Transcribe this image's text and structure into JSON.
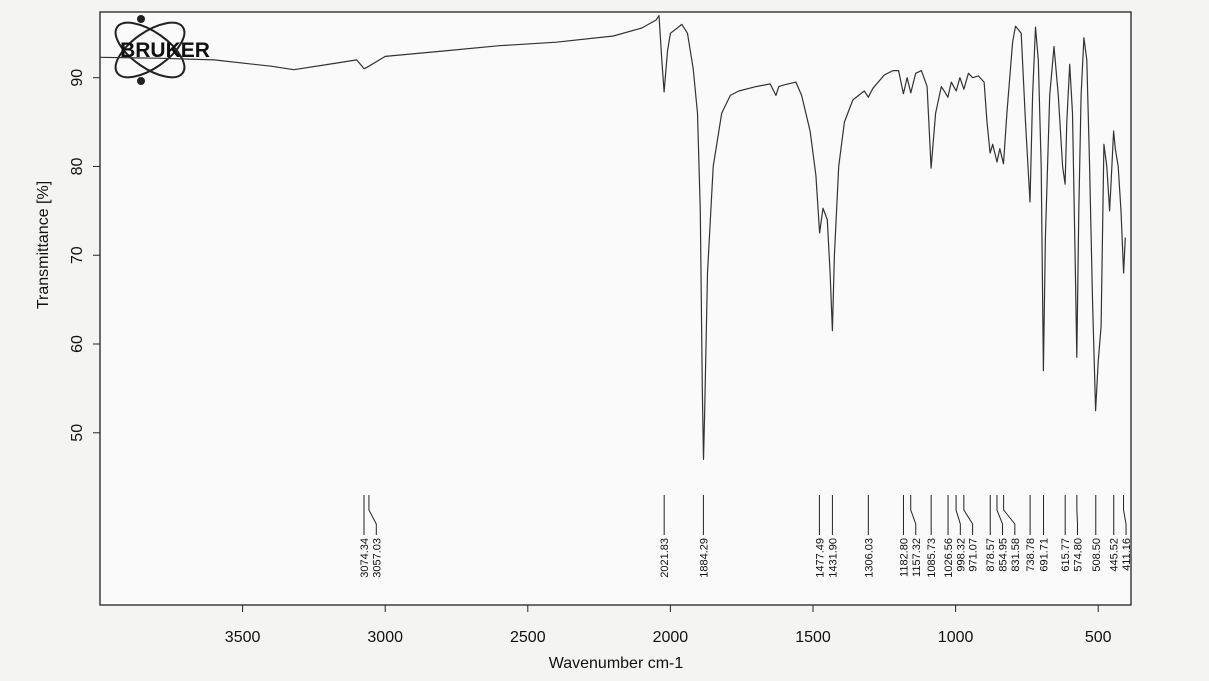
{
  "chart_data": {
    "type": "line",
    "logo_text": "BRUKER",
    "x_label": "Wavenumber cm-1",
    "y_label": "Transmittance [%]",
    "xlim": [
      4000,
      385
    ],
    "ylim": [
      30.6,
      97.4
    ],
    "xticks": [
      3500,
      3000,
      2500,
      2000,
      1500,
      1000,
      500
    ],
    "yticks": [
      50,
      60,
      70,
      80,
      90
    ],
    "series": [
      {
        "color": "#333333",
        "x": [
          4000,
          3800,
          3600,
          3400,
          3320,
          3200,
          3100,
          3074,
          3057,
          3000,
          2800,
          2600,
          2400,
          2200,
          2100,
          2050,
          2040,
          2030,
          2022,
          2010,
          2000,
          1980,
          1960,
          1940,
          1920,
          1905,
          1895,
          1888,
          1884,
          1880,
          1870,
          1850,
          1820,
          1790,
          1760,
          1700,
          1650,
          1630,
          1620,
          1600,
          1560,
          1540,
          1510,
          1490,
          1477,
          1465,
          1450,
          1440,
          1432,
          1425,
          1410,
          1390,
          1360,
          1340,
          1320,
          1306,
          1290,
          1250,
          1220,
          1200,
          1183,
          1170,
          1157,
          1140,
          1120,
          1100,
          1086,
          1070,
          1050,
          1040,
          1027,
          1015,
          998,
          985,
          971,
          955,
          940,
          920,
          900,
          890,
          879,
          870,
          855,
          845,
          832,
          820,
          800,
          790,
          770,
          755,
          739,
          730,
          720,
          710,
          700,
          692,
          685,
          670,
          655,
          640,
          625,
          616,
          610,
          600,
          590,
          580,
          575,
          568,
          560,
          550,
          540,
          530,
          520,
          509,
          500,
          490,
          480,
          470,
          460,
          455,
          446,
          440,
          430,
          420,
          411,
          405
        ],
        "values": [
          92.3,
          92.2,
          92,
          91.3,
          90.9,
          91.5,
          92,
          91,
          91.3,
          92.4,
          93,
          93.6,
          94,
          94.7,
          95.6,
          96.5,
          97,
          92,
          88.4,
          93,
          95,
          95.5,
          96,
          95,
          91,
          86,
          75,
          55,
          47,
          52,
          68,
          80,
          86,
          88,
          88.5,
          89,
          89.3,
          88,
          89,
          89.2,
          89.5,
          88,
          84,
          79,
          72.5,
          75.3,
          74,
          68,
          61.5,
          70,
          80,
          85,
          87.5,
          88,
          88.5,
          87.8,
          88.8,
          90.3,
          90.8,
          90.8,
          88.2,
          90,
          88.3,
          90.5,
          90.8,
          89,
          79.8,
          86,
          89,
          88.5,
          87.8,
          89.5,
          88.5,
          90,
          88.7,
          90.5,
          90,
          90.2,
          89.5,
          85,
          81.5,
          82.5,
          80.5,
          82,
          80.3,
          86,
          94,
          95.8,
          95,
          85,
          76,
          88,
          95.7,
          92,
          80,
          57,
          72,
          88,
          93.5,
          88,
          80,
          78,
          85,
          91.5,
          86,
          68,
          58.5,
          75,
          88,
          94.5,
          92,
          80,
          65,
          52.5,
          58,
          62,
          82.5,
          80,
          75,
          78,
          84,
          82,
          80,
          75,
          68,
          72
        ]
      }
    ],
    "peaks": [
      3074.34,
      3057.03,
      2021.83,
      1884.29,
      1477.49,
      1431.9,
      1306.03,
      1182.8,
      1157.32,
      1085.73,
      1026.56,
      998.32,
      971.07,
      878.57,
      854.95,
      831.58,
      738.78,
      691.71,
      615.77,
      574.8,
      508.5,
      445.52,
      411.16
    ],
    "peak_labels": [
      "3074.34",
      "3057.03",
      "2021.83",
      "1884.29",
      "1477.49",
      "1431.90",
      "1306.03",
      "1182.80",
      "1157.32",
      "1085.73",
      "1026.56",
      "998.32",
      "971.07",
      "878.57",
      "854.95",
      "831.58",
      "738.78",
      "691.71",
      "615.77",
      "574.80",
      "508.50",
      "445.52",
      "411.16"
    ]
  }
}
